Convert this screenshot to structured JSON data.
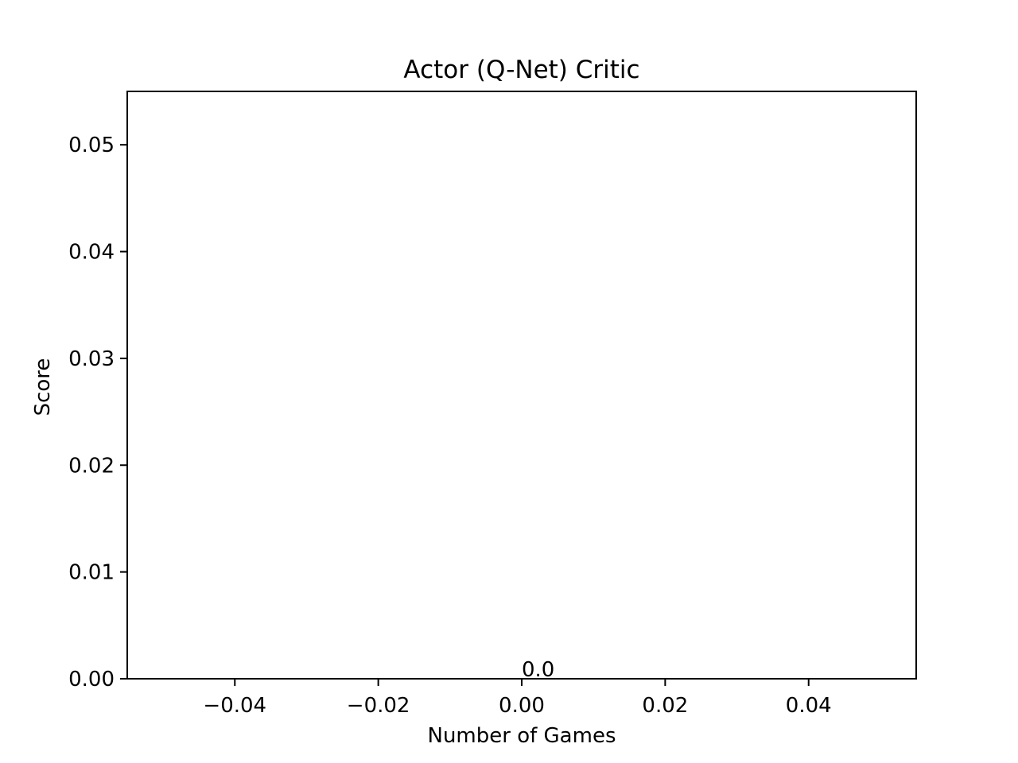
{
  "chart_data": {
    "type": "line",
    "title": "Actor (Q-Net) Critic",
    "xlabel": "Number of Games",
    "ylabel": "Score",
    "xlim": [
      -0.055,
      0.055
    ],
    "ylim": [
      0,
      0.055
    ],
    "xticks": [
      -0.04,
      -0.02,
      0.0,
      0.02,
      0.04
    ],
    "xtick_labels": [
      "−0.04",
      "−0.02",
      "0.00",
      "0.02",
      "0.04"
    ],
    "yticks": [
      0.0,
      0.01,
      0.02,
      0.03,
      0.04,
      0.05
    ],
    "ytick_labels": [
      "0.00",
      "0.01",
      "0.02",
      "0.03",
      "0.04",
      "0.05"
    ],
    "series": [
      {
        "x": [
          0
        ],
        "y": [
          0.0
        ],
        "data_labels": [
          "0.0"
        ]
      }
    ],
    "grid": false,
    "legend": "none"
  }
}
